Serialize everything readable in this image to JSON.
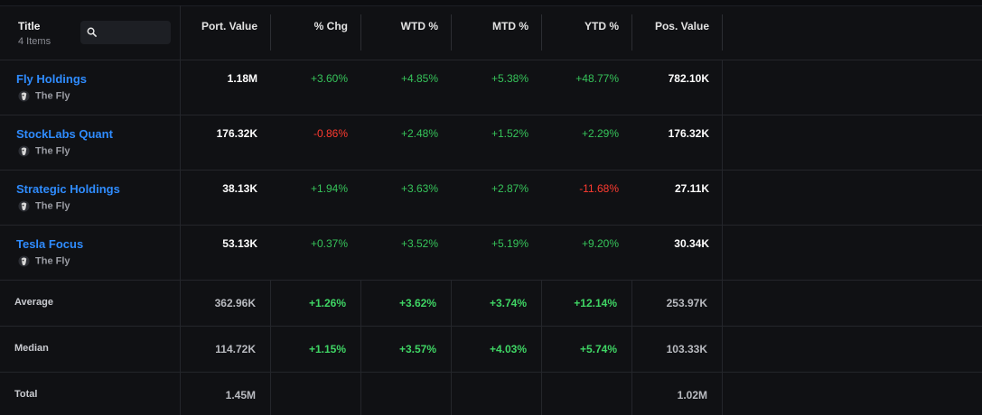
{
  "header": {
    "title": "Title",
    "count": "4 Items",
    "search_placeholder": "",
    "columns": [
      "Port. Value",
      "% Chg",
      "WTD %",
      "MTD %",
      "YTD %",
      "Pos. Value"
    ]
  },
  "rows": [
    {
      "name": "Fly Holdings",
      "provider": "The Fly",
      "port_value": "1.18M",
      "chg": "+3.60%",
      "wtd": "+4.85%",
      "mtd": "+5.38%",
      "ytd": "+48.77%",
      "pos_value": "782.10K"
    },
    {
      "name": "StockLabs Quant",
      "provider": "The Fly",
      "port_value": "176.32K",
      "chg": "-0.86%",
      "wtd": "+2.48%",
      "mtd": "+1.52%",
      "ytd": "+2.29%",
      "pos_value": "176.32K"
    },
    {
      "name": "Strategic Holdings",
      "provider": "The Fly",
      "port_value": "38.13K",
      "chg": "+1.94%",
      "wtd": "+3.63%",
      "mtd": "+2.87%",
      "ytd": "-11.68%",
      "pos_value": "27.11K"
    },
    {
      "name": "Tesla Focus",
      "provider": "The Fly",
      "port_value": "53.13K",
      "chg": "+0.37%",
      "wtd": "+3.52%",
      "mtd": "+5.19%",
      "ytd": "+9.20%",
      "pos_value": "30.34K"
    }
  ],
  "summary": {
    "average": {
      "label": "Average",
      "port_value": "362.96K",
      "chg": "+1.26%",
      "wtd": "+3.62%",
      "mtd": "+3.74%",
      "ytd": "+12.14%",
      "pos_value": "253.97K"
    },
    "median": {
      "label": "Median",
      "port_value": "114.72K",
      "chg": "+1.15%",
      "wtd": "+3.57%",
      "mtd": "+4.03%",
      "ytd": "+5.74%",
      "pos_value": "103.33K"
    },
    "total": {
      "label": "Total",
      "port_value": "1.45M",
      "pos_value": "1.02M"
    }
  },
  "colors": {
    "link": "#2f8cff",
    "positive": "#36c45a",
    "negative": "#ff3b30",
    "background": "#101114"
  },
  "icons": {
    "search": "search-icon",
    "provider": "provider-avatar-icon"
  }
}
